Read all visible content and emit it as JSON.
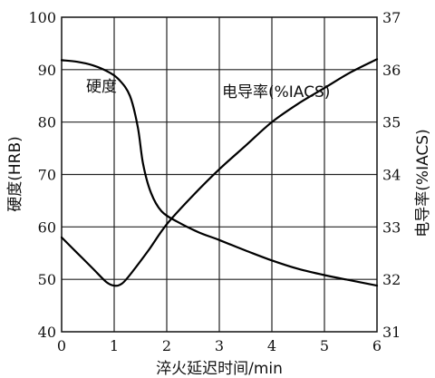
{
  "chart_data": {
    "type": "line",
    "xlabel": "淬火延迟时间/min",
    "ylabel_left": "硬度(HRB)",
    "ylabel_right": "电导率(%IACS)",
    "xlim": [
      0,
      6
    ],
    "ylim_left": [
      40,
      100
    ],
    "ylim_right": [
      31,
      37
    ],
    "x_ticks": [
      "0",
      "1",
      "2",
      "3",
      "4",
      "5",
      "6"
    ],
    "y_left_ticks": [
      "40",
      "50",
      "60",
      "70",
      "80",
      "90",
      "100"
    ],
    "y_right_ticks": [
      "31",
      "32",
      "33",
      "34",
      "35",
      "36",
      "37"
    ],
    "grid": true,
    "series": [
      {
        "name": "硬度",
        "axis": "left",
        "points": [
          [
            0,
            91.8
          ],
          [
            0.3,
            91.5
          ],
          [
            0.6,
            90.8
          ],
          [
            0.9,
            89.5
          ],
          [
            1.1,
            88.0
          ],
          [
            1.3,
            85.0
          ],
          [
            1.45,
            79.0
          ],
          [
            1.55,
            72.0
          ],
          [
            1.7,
            66.5
          ],
          [
            1.9,
            63.0
          ],
          [
            2.2,
            61.0
          ],
          [
            2.6,
            59.0
          ],
          [
            3.0,
            57.5
          ],
          [
            3.5,
            55.5
          ],
          [
            4.0,
            53.6
          ],
          [
            4.5,
            52.0
          ],
          [
            5.0,
            50.8
          ],
          [
            5.5,
            49.8
          ],
          [
            6.0,
            48.8
          ]
        ]
      },
      {
        "name": "电导率(%IACS)",
        "axis": "right",
        "points": [
          [
            0,
            32.8
          ],
          [
            0.3,
            32.5
          ],
          [
            0.6,
            32.2
          ],
          [
            0.85,
            31.95
          ],
          [
            1.0,
            31.88
          ],
          [
            1.15,
            31.92
          ],
          [
            1.35,
            32.15
          ],
          [
            1.65,
            32.55
          ],
          [
            2.0,
            33.05
          ],
          [
            2.5,
            33.6
          ],
          [
            3.0,
            34.1
          ],
          [
            3.5,
            34.55
          ],
          [
            4.0,
            35.0
          ],
          [
            4.5,
            35.35
          ],
          [
            5.0,
            35.65
          ],
          [
            5.5,
            35.95
          ],
          [
            6.0,
            36.2
          ]
        ]
      }
    ]
  }
}
